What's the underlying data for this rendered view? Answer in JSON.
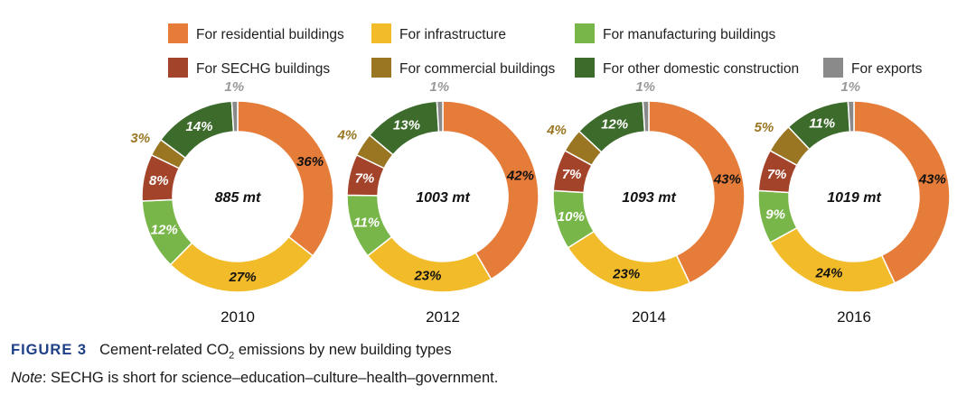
{
  "chart_data": {
    "type": "donut",
    "categories": [
      {
        "key": "residential",
        "label": "For residential buildings",
        "color": "#e57c3a"
      },
      {
        "key": "infrastructure",
        "label": "For infrastructure",
        "color": "#f2bb2a"
      },
      {
        "key": "manufacturing",
        "label": "For manufacturing buildings",
        "color": "#79b64a"
      },
      {
        "key": "sechg",
        "label": "For SECHG buildings",
        "color": "#a2432a"
      },
      {
        "key": "commercial",
        "label": "For commercial buildings",
        "color": "#9a7623"
      },
      {
        "key": "other_domestic",
        "label": "For other domestic construction",
        "color": "#3d6b2b"
      },
      {
        "key": "exports",
        "label": "For exports",
        "color": "#8a8a8a"
      }
    ],
    "legend_placement": "top",
    "charts": [
      {
        "year": "2010",
        "total": "885 mt",
        "values": {
          "residential": 36,
          "infrastructure": 27,
          "manufacturing": 12,
          "sechg": 8,
          "commercial": 3,
          "other_domestic": 14,
          "exports": 1
        }
      },
      {
        "year": "2012",
        "total": "1003 mt",
        "values": {
          "residential": 42,
          "infrastructure": 23,
          "manufacturing": 11,
          "sechg": 7,
          "commercial": 4,
          "other_domestic": 13,
          "exports": 1
        }
      },
      {
        "year": "2014",
        "total": "1093 mt",
        "values": {
          "residential": 43,
          "infrastructure": 23,
          "manufacturing": 10,
          "sechg": 7,
          "commercial": 4,
          "other_domestic": 12,
          "exports": 1
        }
      },
      {
        "year": "2016",
        "total": "1019 mt",
        "values": {
          "residential": 43,
          "infrastructure": 24,
          "manufacturing": 9,
          "sechg": 7,
          "commercial": 5,
          "other_domestic": 11,
          "exports": 1
        }
      }
    ]
  },
  "caption": {
    "figure_label": "FIGURE 3",
    "title_before_sub": "Cement-related CO",
    "title_sub": "2",
    "title_after_sub": " emissions by new building types",
    "note_label": "Note",
    "note_text": ": SECHG is short for science–education–culture–health–government."
  }
}
